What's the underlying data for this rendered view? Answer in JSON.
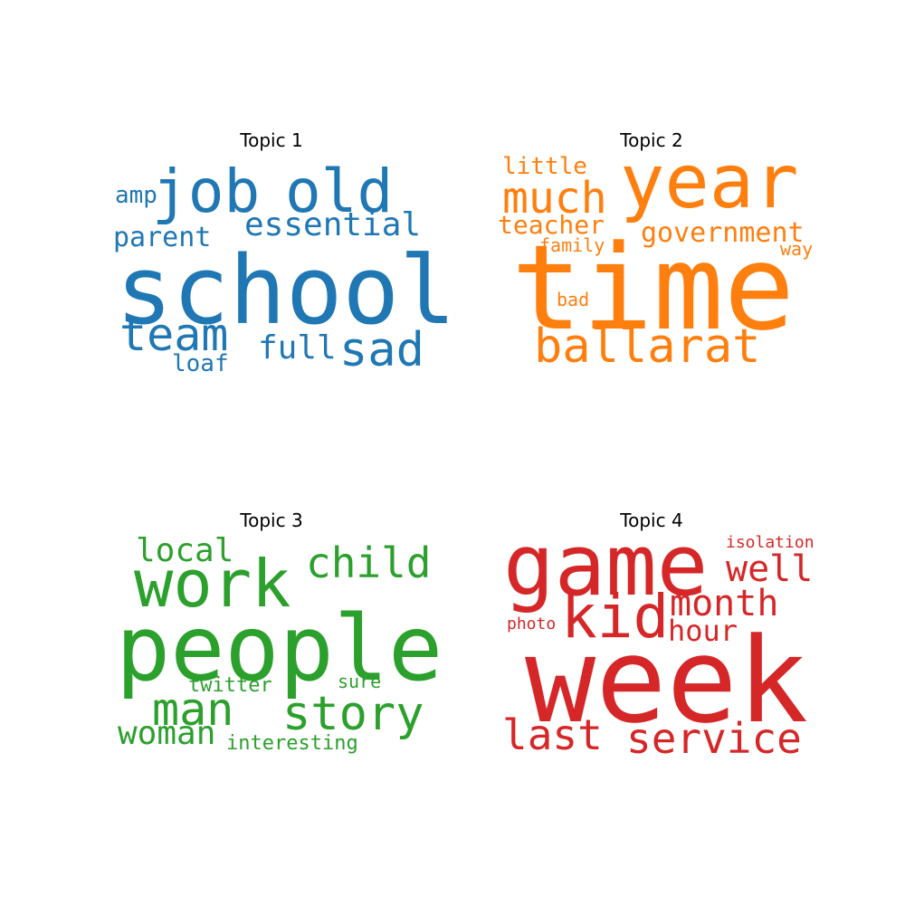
{
  "topics": [
    {
      "title": "Topic 1",
      "color": "#1f77b4",
      "words": [
        "job",
        "old",
        "amp",
        "essential",
        "parent",
        "school",
        "team",
        "full",
        "sad",
        "loaf"
      ]
    },
    {
      "title": "Topic 2",
      "color": "#ff7f0e",
      "words": [
        "little",
        "year",
        "much",
        "teacher",
        "government",
        "family",
        "way",
        "time",
        "bad",
        "ballarat"
      ]
    },
    {
      "title": "Topic 3",
      "color": "#2ca02c",
      "words": [
        "local",
        "child",
        "work",
        "people",
        "twitter",
        "sure",
        "man",
        "story",
        "woman",
        "interesting"
      ]
    },
    {
      "title": "Topic 4",
      "color": "#d62728",
      "words": [
        "game",
        "isolation",
        "well",
        "month",
        "kid",
        "photo",
        "hour",
        "week",
        "last",
        "service"
      ]
    }
  ]
}
